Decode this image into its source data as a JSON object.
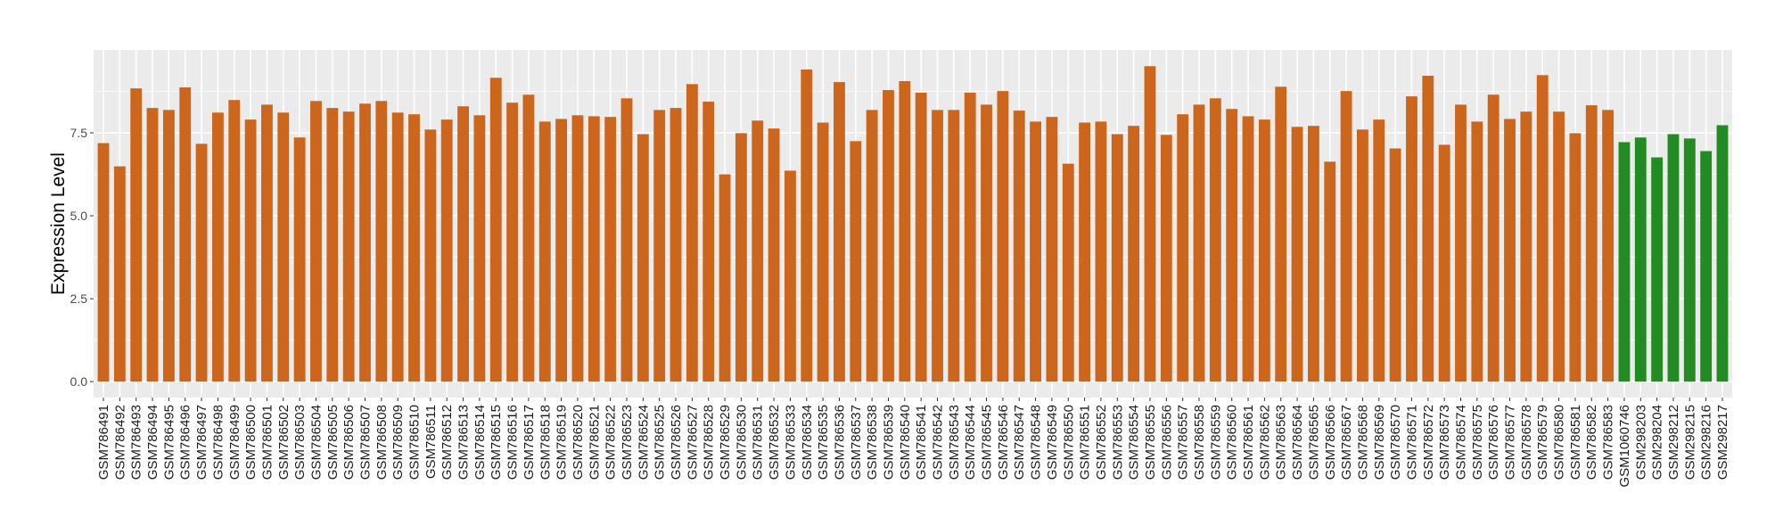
{
  "chart_data": {
    "type": "bar",
    "title": "",
    "xlabel": "",
    "ylabel": "Expression Level",
    "ylim": [
      -0.48,
      10.0
    ],
    "y_ticks": [
      "0.0",
      "2.5",
      "5.0",
      "7.5"
    ],
    "y_tick_values": [
      0,
      2.5,
      5,
      7.5
    ],
    "grid": true,
    "legend": "none",
    "colors": {
      "group1": "#CD661D",
      "group2": "#228B22"
    },
    "categories": [
      "GSM786491",
      "GSM786492",
      "GSM786493",
      "GSM786494",
      "GSM786495",
      "GSM786496",
      "GSM786497",
      "GSM786498",
      "GSM786499",
      "GSM786500",
      "GSM786501",
      "GSM786502",
      "GSM786503",
      "GSM786504",
      "GSM786505",
      "GSM786506",
      "GSM786507",
      "GSM786508",
      "GSM786509",
      "GSM786510",
      "GSM786511",
      "GSM786512",
      "GSM786513",
      "GSM786514",
      "GSM786515",
      "GSM786516",
      "GSM786517",
      "GSM786518",
      "GSM786519",
      "GSM786520",
      "GSM786521",
      "GSM786522",
      "GSM786523",
      "GSM786524",
      "GSM786525",
      "GSM786526",
      "GSM786527",
      "GSM786528",
      "GSM786529",
      "GSM786530",
      "GSM786531",
      "GSM786532",
      "GSM786533",
      "GSM786534",
      "GSM786535",
      "GSM786536",
      "GSM786537",
      "GSM786538",
      "GSM786539",
      "GSM786540",
      "GSM786541",
      "GSM786542",
      "GSM786543",
      "GSM786544",
      "GSM786545",
      "GSM786546",
      "GSM786547",
      "GSM786548",
      "GSM786549",
      "GSM786550",
      "GSM786551",
      "GSM786552",
      "GSM786553",
      "GSM786554",
      "GSM786555",
      "GSM786556",
      "GSM786557",
      "GSM786558",
      "GSM786559",
      "GSM786560",
      "GSM786561",
      "GSM786562",
      "GSM786563",
      "GSM786564",
      "GSM786565",
      "GSM786566",
      "GSM786567",
      "GSM786568",
      "GSM786569",
      "GSM786570",
      "GSM786571",
      "GSM786572",
      "GSM786573",
      "GSM786574",
      "GSM786575",
      "GSM786576",
      "GSM786577",
      "GSM786578",
      "GSM786579",
      "GSM786580",
      "GSM786581",
      "GSM786582",
      "GSM786583",
      "GSM1060746",
      "GSM298203",
      "GSM298204",
      "GSM298212",
      "GSM298215",
      "GSM298216",
      "GSM298217"
    ],
    "values": [
      7.19,
      6.49,
      8.84,
      8.25,
      8.19,
      8.87,
      7.17,
      8.11,
      8.49,
      7.9,
      8.35,
      8.11,
      7.36,
      8.46,
      8.25,
      8.14,
      8.38,
      8.46,
      8.11,
      8.06,
      7.6,
      7.9,
      8.3,
      8.03,
      9.16,
      8.41,
      8.65,
      7.84,
      7.92,
      8.03,
      8.0,
      7.98,
      8.54,
      7.46,
      8.19,
      8.25,
      8.97,
      8.44,
      6.25,
      7.49,
      7.87,
      7.63,
      6.36,
      9.41,
      7.81,
      9.03,
      7.25,
      8.19,
      8.79,
      9.06,
      8.71,
      8.19,
      8.19,
      8.71,
      8.35,
      8.76,
      8.17,
      7.84,
      7.98,
      6.57,
      7.81,
      7.84,
      7.46,
      7.71,
      9.51,
      7.44,
      8.06,
      8.35,
      8.54,
      8.22,
      8.0,
      7.9,
      8.89,
      7.68,
      7.71,
      6.63,
      8.76,
      7.6,
      7.9,
      7.03,
      8.6,
      9.22,
      7.14,
      8.35,
      7.84,
      8.65,
      7.92,
      8.14,
      9.24,
      8.14,
      7.49,
      8.33,
      8.19,
      7.22,
      7.36,
      6.76,
      7.46,
      7.33,
      6.95,
      7.73
    ],
    "groups": [
      "group1",
      "group1",
      "group1",
      "group1",
      "group1",
      "group1",
      "group1",
      "group1",
      "group1",
      "group1",
      "group1",
      "group1",
      "group1",
      "group1",
      "group1",
      "group1",
      "group1",
      "group1",
      "group1",
      "group1",
      "group1",
      "group1",
      "group1",
      "group1",
      "group1",
      "group1",
      "group1",
      "group1",
      "group1",
      "group1",
      "group1",
      "group1",
      "group1",
      "group1",
      "group1",
      "group1",
      "group1",
      "group1",
      "group1",
      "group1",
      "group1",
      "group1",
      "group1",
      "group1",
      "group1",
      "group1",
      "group1",
      "group1",
      "group1",
      "group1",
      "group1",
      "group1",
      "group1",
      "group1",
      "group1",
      "group1",
      "group1",
      "group1",
      "group1",
      "group1",
      "group1",
      "group1",
      "group1",
      "group1",
      "group1",
      "group1",
      "group1",
      "group1",
      "group1",
      "group1",
      "group1",
      "group1",
      "group1",
      "group1",
      "group1",
      "group1",
      "group1",
      "group1",
      "group1",
      "group1",
      "group1",
      "group1",
      "group1",
      "group1",
      "group1",
      "group1",
      "group1",
      "group1",
      "group1",
      "group1",
      "group1",
      "group1",
      "group1",
      "group2",
      "group2",
      "group2",
      "group2",
      "group2",
      "group2",
      "group2"
    ]
  }
}
